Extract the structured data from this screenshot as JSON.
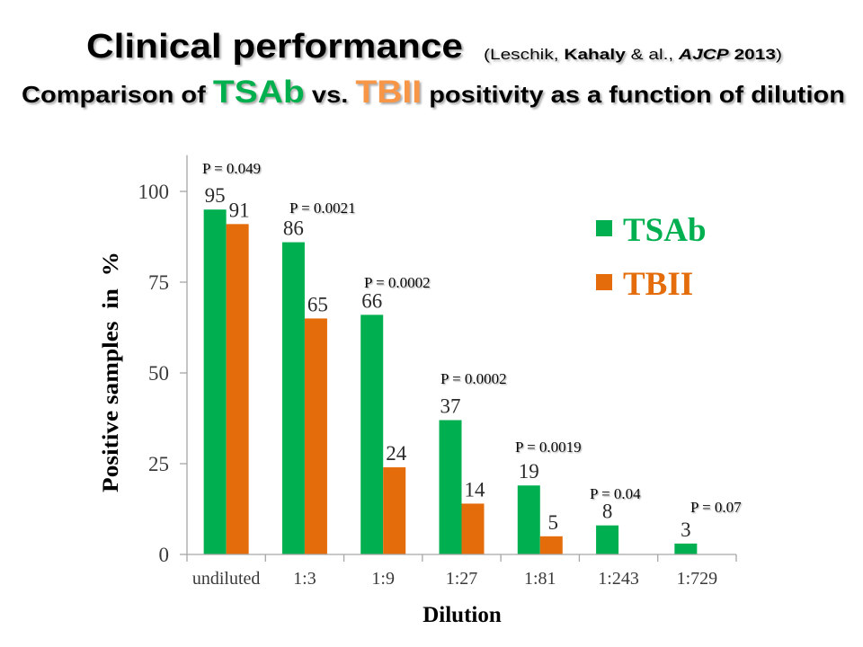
{
  "slide": {
    "title": "Clinical performance",
    "citation": {
      "open": "(Leschik, ",
      "author": "Kahaly",
      "mid": " & al., ",
      "journal": "AJCP",
      "year": " 2013",
      "close": ")"
    },
    "subtitle": {
      "prefix": "Comparison of ",
      "series1": "TSAb",
      "vs": " vs. ",
      "series2": "TBII",
      "suffix": " positivity as a function of dilution"
    },
    "colors": {
      "title_tsab": "#00B050",
      "title_tbii": "#F79646"
    }
  },
  "chart_data": {
    "type": "bar",
    "title": "",
    "xlabel": "Dilution",
    "ylabel": "Positive samples  in  %",
    "ylim": [
      0,
      110
    ],
    "yticks": [
      0,
      25,
      50,
      75,
      100
    ],
    "grid": false,
    "legend": "right",
    "categories": [
      "undiluted",
      "1:3",
      "1:9",
      "1:27",
      "1:81",
      "1:243",
      "1:729"
    ],
    "series": [
      {
        "name": "TSAb",
        "color": "#00B050",
        "values": [
          95,
          86,
          66,
          37,
          19,
          8,
          3
        ]
      },
      {
        "name": "TBII",
        "color": "#E46C0A",
        "values": [
          91,
          65,
          24,
          14,
          5,
          null,
          null
        ]
      }
    ],
    "annotations": [
      {
        "category": "undiluted",
        "text": "P = 0.049"
      },
      {
        "category": "1:3",
        "text": "P = 0.0021"
      },
      {
        "category": "1:9",
        "text": "P = 0.0002"
      },
      {
        "category": "1:27",
        "text": "P = 0.0002"
      },
      {
        "category": "1:81",
        "text": "P = 0.0019"
      },
      {
        "category": "1:243",
        "text": "P = 0.04"
      },
      {
        "category": "1:729",
        "text": "P = 0.07"
      }
    ]
  }
}
